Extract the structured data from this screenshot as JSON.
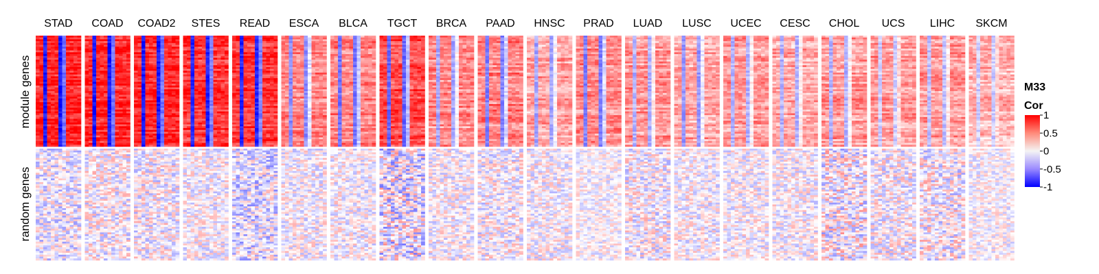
{
  "chart_data": {
    "type": "heatmap",
    "legend_title_line1": "M33",
    "legend_title_line2": "Cor",
    "legend_ticks": [
      "1",
      "0.5",
      "0",
      "-0.5",
      "-1"
    ],
    "legend_tick_values": [
      1,
      0.5,
      0,
      -0.5,
      -1
    ],
    "color_scale": {
      "min": -1,
      "mid": 0,
      "max": 1,
      "low": "#0000ff",
      "mid_color": "#ffffff",
      "high": "#ff0000"
    },
    "row_groups": [
      "module genes",
      "random genes"
    ],
    "columns": [
      "STAD",
      "COAD",
      "COAD2",
      "STES",
      "READ",
      "ESCA",
      "BLCA",
      "TGCT",
      "BRCA",
      "PAAD",
      "HNSC",
      "PRAD",
      "LUAD",
      "LUSC",
      "UCEC",
      "CESC",
      "CHOL",
      "UCS",
      "LIHC",
      "SKCM"
    ],
    "module_mean_correlation": [
      0.85,
      0.85,
      0.85,
      0.8,
      0.8,
      0.5,
      0.5,
      0.7,
      0.45,
      0.5,
      0.35,
      0.45,
      0.4,
      0.35,
      0.4,
      0.35,
      0.4,
      0.4,
      0.4,
      0.3
    ],
    "module_blue_stripe_strength": [
      0.9,
      0.9,
      0.9,
      0.85,
      0.85,
      0.45,
      0.55,
      0.6,
      0.35,
      0.5,
      0.35,
      0.5,
      0.3,
      0.4,
      0.3,
      0.3,
      0.3,
      0.2,
      0.25,
      0.2
    ],
    "random_mean_correlation": [
      -0.05,
      0,
      0,
      0,
      -0.1,
      0,
      0,
      -0.05,
      0,
      0,
      0,
      0,
      0,
      0,
      0,
      0,
      0,
      0,
      0,
      0
    ],
    "random_noise_amplitude": [
      0.35,
      0.35,
      0.35,
      0.3,
      0.4,
      0.3,
      0.3,
      0.5,
      0.3,
      0.35,
      0.3,
      0.25,
      0.35,
      0.3,
      0.3,
      0.3,
      0.45,
      0.35,
      0.4,
      0.25
    ]
  }
}
